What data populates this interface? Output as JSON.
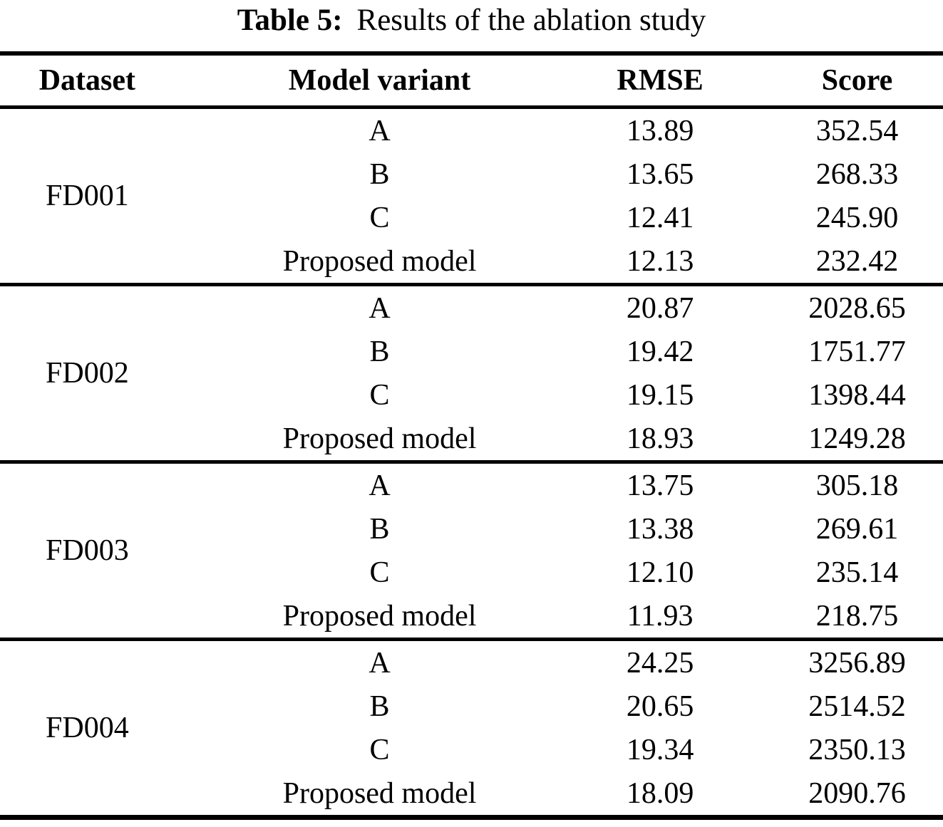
{
  "title": {
    "label": "Table 5:",
    "text": "Results of the ablation study"
  },
  "colors": {
    "text": "#000000",
    "background": "#ffffff",
    "rule": "#000000"
  },
  "table": {
    "columns": [
      "Dataset",
      "Model variant",
      "RMSE",
      "Score"
    ],
    "groups": [
      {
        "dataset": "FD001",
        "rows": [
          {
            "variant": "A",
            "rmse": "13.89",
            "score": "352.54"
          },
          {
            "variant": "B",
            "rmse": "13.65",
            "score": "268.33"
          },
          {
            "variant": "C",
            "rmse": "12.41",
            "score": "245.90"
          },
          {
            "variant": "Proposed model",
            "rmse": "12.13",
            "score": "232.42"
          }
        ]
      },
      {
        "dataset": "FD002",
        "rows": [
          {
            "variant": "A",
            "rmse": "20.87",
            "score": "2028.65"
          },
          {
            "variant": "B",
            "rmse": "19.42",
            "score": "1751.77"
          },
          {
            "variant": "C",
            "rmse": "19.15",
            "score": "1398.44"
          },
          {
            "variant": "Proposed model",
            "rmse": "18.93",
            "score": "1249.28"
          }
        ]
      },
      {
        "dataset": "FD003",
        "rows": [
          {
            "variant": "A",
            "rmse": "13.75",
            "score": "305.18"
          },
          {
            "variant": "B",
            "rmse": "13.38",
            "score": "269.61"
          },
          {
            "variant": "C",
            "rmse": "12.10",
            "score": "235.14"
          },
          {
            "variant": "Proposed model",
            "rmse": "11.93",
            "score": "218.75"
          }
        ]
      },
      {
        "dataset": "FD004",
        "rows": [
          {
            "variant": "A",
            "rmse": "24.25",
            "score": "3256.89"
          },
          {
            "variant": "B",
            "rmse": "20.65",
            "score": "2514.52"
          },
          {
            "variant": "C",
            "rmse": "19.34",
            "score": "2350.13"
          },
          {
            "variant": "Proposed model",
            "rmse": "18.09",
            "score": "2090.76"
          }
        ]
      }
    ]
  }
}
